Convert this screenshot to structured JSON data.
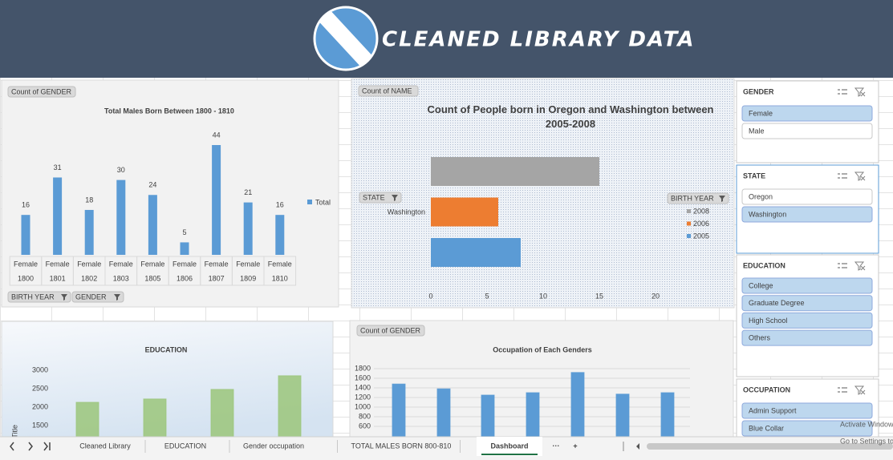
{
  "header": {
    "title": "CLEANED LIBRARY DATA"
  },
  "chart_data": [
    {
      "type": "bar",
      "title": "Total Males Born Between 1800 - 1810",
      "value_field": "Count of GENDER",
      "categories": [
        "1800",
        "1801",
        "1802",
        "1803",
        "1805",
        "1806",
        "1807",
        "1809",
        "1810"
      ],
      "category_group": [
        "Female",
        "Female",
        "Female",
        "Female",
        "Female",
        "Female",
        "Female",
        "Female",
        "Female"
      ],
      "row_fields": [
        "BIRTH YEAR",
        "GENDER"
      ],
      "series": [
        {
          "name": "Total",
          "color": "#5b9bd5",
          "values": [
            16,
            31,
            18,
            30,
            24,
            5,
            44,
            21,
            16
          ]
        }
      ],
      "data_labels": true,
      "legend": "right"
    },
    {
      "type": "bar",
      "orientation": "horizontal",
      "title": "Count of People born in Oregon and Washington between 2005-2008",
      "value_field": "Count of NAME",
      "row_fields": [
        "STATE"
      ],
      "categories": [
        "Washington"
      ],
      "legend_title": "BIRTH YEAR",
      "series": [
        {
          "name": "2008",
          "color": "#a5a5a5",
          "values": [
            15
          ]
        },
        {
          "name": "2006",
          "color": "#ed7d31",
          "values": [
            6
          ]
        },
        {
          "name": "2005",
          "color": "#5b9bd5",
          "values": [
            8
          ]
        }
      ],
      "xlim": [
        0,
        20
      ],
      "xticks": [
        0,
        5,
        10,
        15,
        20
      ],
      "legend": "right"
    },
    {
      "type": "bar",
      "title": "EDUCATION",
      "y_label": "Axis Title",
      "series": [
        {
          "color": "#9bc57a",
          "values": [
            2130,
            2220,
            2480,
            2850
          ]
        }
      ],
      "ylim": [
        0,
        3000
      ],
      "yticks": [
        1500,
        2000,
        2500,
        3000
      ],
      "grid": false
    },
    {
      "type": "bar",
      "title": "Occupation of Each Genders",
      "value_field": "Count of GENDER",
      "series": [
        {
          "color": "#5b9bd5",
          "values": [
            1480,
            1380,
            1250,
            1300,
            1720,
            1270,
            1300
          ]
        }
      ],
      "ylim": [
        0,
        1800
      ],
      "yticks": [
        600,
        800,
        1000,
        1200,
        1400,
        1600,
        1800
      ],
      "grid": true
    }
  ],
  "slicers": [
    {
      "title": "GENDER",
      "items": [
        {
          "label": "Female",
          "selected": true
        },
        {
          "label": "Male",
          "selected": false
        }
      ]
    },
    {
      "title": "STATE",
      "items": [
        {
          "label": "Oregon",
          "selected": false
        },
        {
          "label": "Washington",
          "selected": true
        }
      ]
    },
    {
      "title": "EDUCATION",
      "items": [
        {
          "label": "College",
          "selected": true
        },
        {
          "label": "Graduate Degree",
          "selected": true
        },
        {
          "label": "High School",
          "selected": true
        },
        {
          "label": "Others",
          "selected": true
        }
      ]
    },
    {
      "title": "OCCUPATION",
      "items": [
        {
          "label": "Admin Support",
          "selected": true
        },
        {
          "label": "Blue Collar",
          "selected": true
        }
      ]
    }
  ],
  "sheet_tabs": {
    "tabs": [
      "Cleaned Library",
      "EDUCATION",
      "Gender occupation",
      "TOTAL MALES BORN 800-810",
      "Dashboard"
    ],
    "active": 4,
    "more": "···",
    "add": "+"
  },
  "watermark": [
    "Activate Windows",
    "Go to Settings to activate Windows."
  ]
}
